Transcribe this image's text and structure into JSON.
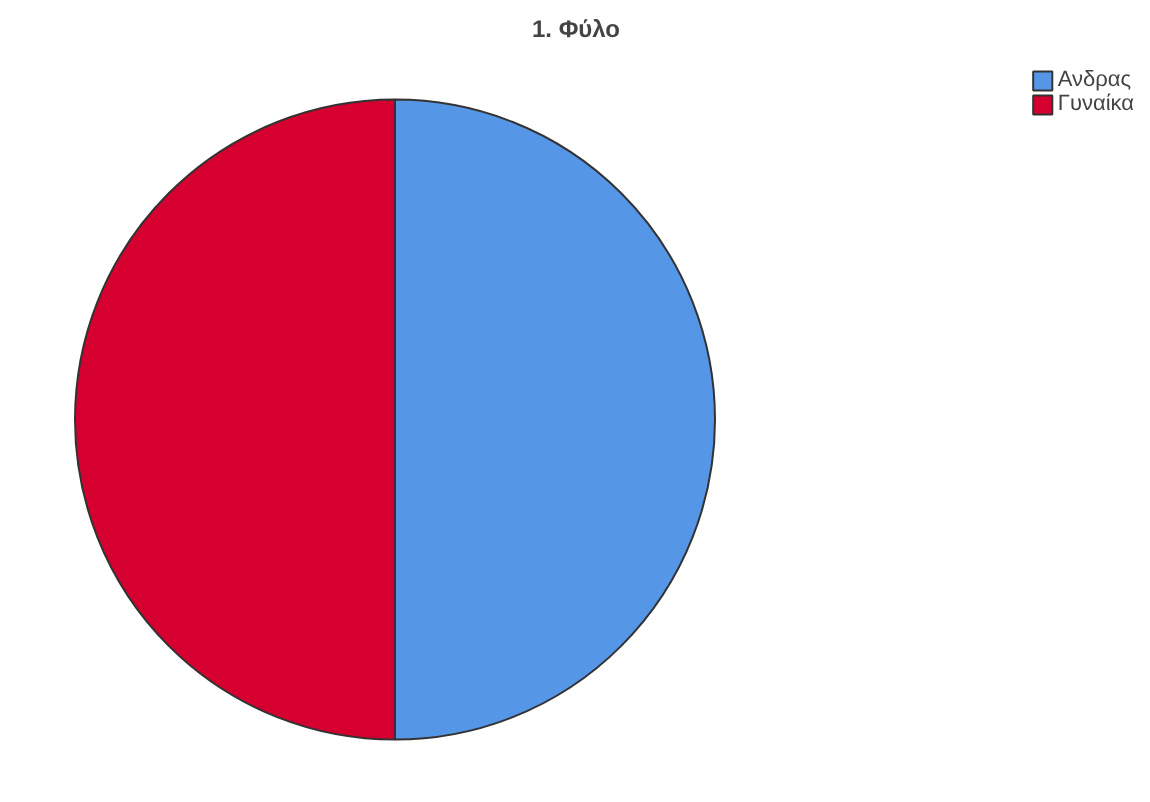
{
  "chart_data": {
    "type": "pie",
    "title": "1. Φύλο",
    "categories": [
      "Ανδρας",
      "Γυναίκα"
    ],
    "values": [
      50,
      50
    ],
    "colors": [
      "#5596e6",
      "#d5002f"
    ],
    "legend": "top right"
  }
}
